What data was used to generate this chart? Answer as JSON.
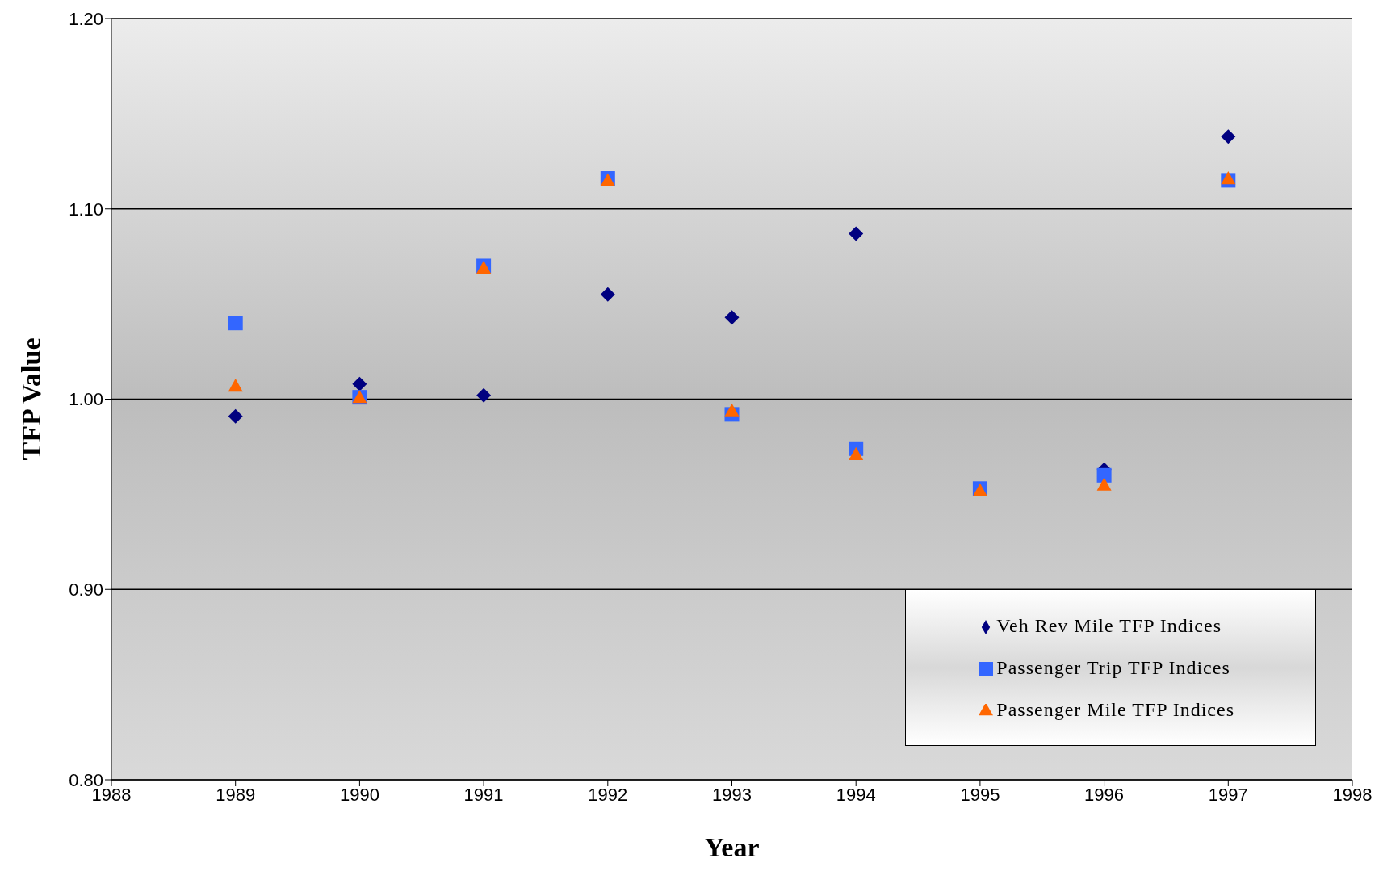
{
  "chart_data": {
    "type": "scatter",
    "xlabel": "Year",
    "ylabel": "TFP Value",
    "x": [
      1989,
      1990,
      1991,
      1992,
      1993,
      1994,
      1995,
      1996,
      1997
    ],
    "xlim": [
      1988,
      1998
    ],
    "xticks": [
      1988,
      1989,
      1990,
      1991,
      1992,
      1993,
      1994,
      1995,
      1996,
      1997,
      1998
    ],
    "ylim": [
      0.8,
      1.2
    ],
    "yticks": [
      {
        "value": 0.8,
        "label": "0.80"
      },
      {
        "value": 0.9,
        "label": "0.90"
      },
      {
        "value": 1.0,
        "label": "1.00"
      },
      {
        "value": 1.1,
        "label": "1.10"
      },
      {
        "value": 1.2,
        "label": "1.20"
      }
    ],
    "grid": "y",
    "legend": "bottom right",
    "series": [
      {
        "name": "Veh Rev Mile TFP Indices",
        "color": "#000080",
        "marker": "diamond",
        "values": [
          0.991,
          1.008,
          1.002,
          1.055,
          1.043,
          1.087,
          null,
          0.963,
          1.138
        ]
      },
      {
        "name": "Passenger Trip TFP Indices",
        "color": "#3366ff",
        "marker": "square",
        "values": [
          1.04,
          1.001,
          1.07,
          1.116,
          0.992,
          0.974,
          0.953,
          0.96,
          1.115
        ]
      },
      {
        "name": "Passenger Mile TFP Indices",
        "color": "#ff6600",
        "marker": "triangle",
        "values": [
          1.007,
          1.001,
          1.069,
          1.115,
          0.994,
          0.971,
          0.952,
          0.955,
          1.116
        ]
      }
    ]
  }
}
